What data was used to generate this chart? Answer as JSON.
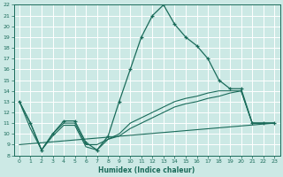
{
  "xlabel": "Humidex (Indice chaleur)",
  "ylabel": "",
  "xlim": [
    -0.5,
    23.5
  ],
  "ylim": [
    8,
    22
  ],
  "yticks": [
    8,
    9,
    10,
    11,
    12,
    13,
    14,
    15,
    16,
    17,
    18,
    19,
    20,
    21,
    22
  ],
  "xticks": [
    0,
    1,
    2,
    3,
    4,
    5,
    6,
    7,
    8,
    9,
    10,
    11,
    12,
    13,
    14,
    15,
    16,
    17,
    18,
    19,
    20,
    21,
    22,
    23
  ],
  "bg_color": "#cce9e5",
  "grid_color": "#ffffff",
  "line_color": "#1a6b5a",
  "line1": {
    "x": [
      0,
      1,
      2,
      3,
      4,
      5,
      6,
      7,
      8,
      9,
      10,
      11,
      12,
      13,
      14,
      15,
      16,
      17,
      18,
      19,
      20,
      21,
      22,
      23
    ],
    "y": [
      13,
      11,
      8.5,
      10,
      11.2,
      11.2,
      9.2,
      8.5,
      9.8,
      13,
      16,
      19,
      21,
      22,
      20.2,
      19,
      18.2,
      17,
      15,
      14.2,
      14.2,
      11,
      11,
      11
    ]
  },
  "line2": {
    "x": [
      0,
      1,
      2,
      3,
      4,
      5,
      6,
      7,
      8,
      9,
      10,
      11,
      12,
      13,
      14,
      15,
      16,
      17,
      18,
      19,
      20,
      21,
      22,
      23
    ],
    "y": [
      13,
      11,
      8.5,
      10,
      11,
      11,
      9,
      9,
      9.5,
      10,
      11,
      11.5,
      12,
      12.5,
      13,
      13.3,
      13.5,
      13.8,
      14,
      14,
      14,
      11,
      11,
      11
    ]
  },
  "line3": {
    "x": [
      0,
      1,
      2,
      3,
      4,
      5,
      6,
      7,
      8,
      9,
      10,
      11,
      12,
      13,
      14,
      15,
      16,
      17,
      18,
      19,
      20,
      21,
      22,
      23
    ],
    "y": [
      13,
      10.5,
      8.5,
      9.8,
      10.8,
      10.8,
      8.8,
      8.5,
      9.5,
      9.8,
      10.5,
      11,
      11.5,
      12,
      12.5,
      12.8,
      13,
      13.3,
      13.5,
      13.8,
      14,
      11,
      11,
      11
    ]
  },
  "line4": {
    "x": [
      0,
      23
    ],
    "y": [
      9,
      11
    ]
  }
}
